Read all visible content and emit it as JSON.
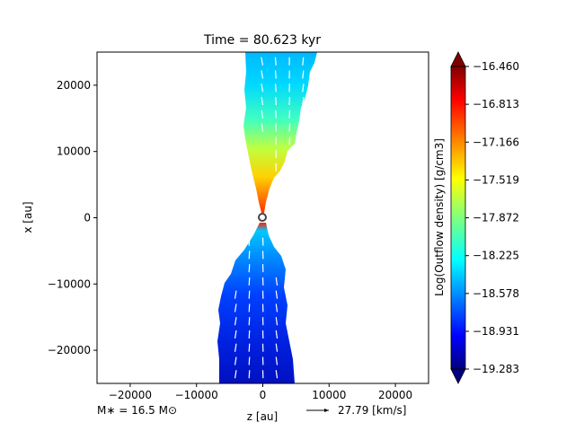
{
  "chart_data": {
    "type": "heatmap",
    "title": "Time = 80.623 kyr",
    "xlabel": "z [au]",
    "ylabel": "x [au]",
    "xlim": [
      -25000,
      25000
    ],
    "ylim": [
      -25000,
      25000
    ],
    "x_ticks": [
      -20000,
      -10000,
      0,
      10000,
      20000
    ],
    "x_tick_labels": [
      "−20000",
      "−10000",
      "0",
      "10000",
      "20000"
    ],
    "y_ticks": [
      20000,
      10000,
      0,
      -10000,
      -20000
    ],
    "y_tick_labels": [
      "20000",
      "10000",
      "0",
      "−10000",
      "−20000"
    ],
    "colorbar": {
      "label": "Log(Outflow density) [g/cm3]",
      "colormap": "jet",
      "extend": "both",
      "range": [
        -19.283,
        -16.46
      ],
      "tick_values": [
        -16.46,
        -16.813,
        -17.166,
        -17.519,
        -17.872,
        -18.225,
        -18.578,
        -18.931,
        -19.283
      ],
      "tick_labels": [
        "−16.460",
        "−16.813",
        "−17.166",
        "−17.519",
        "−17.872",
        "−18.225",
        "−18.578",
        "−18.931",
        "−19.283"
      ]
    },
    "upper_lobe": {
      "width_au": [
        [
          25000,
          11000
        ],
        [
          15000,
          8000
        ],
        [
          10000,
          5000
        ],
        [
          5000,
          1500
        ],
        [
          1000,
          300
        ]
      ],
      "density_profile": [
        [
          25000,
          -18.3
        ],
        [
          15000,
          -18.1
        ],
        [
          10000,
          -17.6
        ],
        [
          5000,
          -17.3
        ],
        [
          1000,
          -16.7
        ]
      ]
    },
    "lower_lobe": {
      "width_au": [
        [
          -1000,
          600
        ],
        [
          -5000,
          6000
        ],
        [
          -15000,
          9000
        ],
        [
          -25000,
          11000
        ]
      ],
      "density_profile": [
        [
          -1000,
          -16.8
        ],
        [
          -5000,
          -18.3
        ],
        [
          -15000,
          -18.8
        ],
        [
          -25000,
          -19.2
        ]
      ]
    },
    "star_marker": {
      "x": 0,
      "y": 0
    },
    "annotations": {
      "stellar_mass": "M∗ = 16.5 M⊙",
      "velocity_key": "27.79 [km/s]"
    }
  }
}
